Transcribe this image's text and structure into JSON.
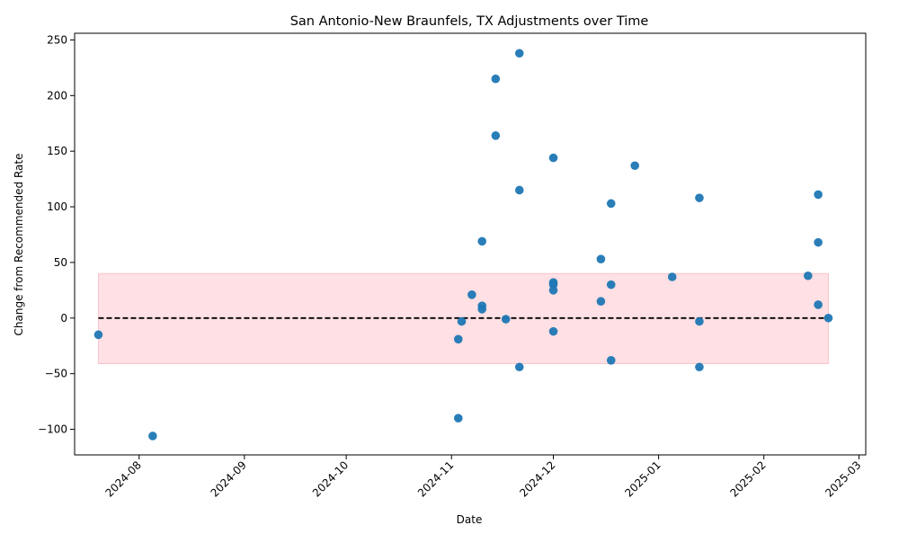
{
  "chart_data": {
    "type": "scatter",
    "title": "San Antonio-New Braunfels, TX Adjustments over Time",
    "xlabel": "Date",
    "ylabel": "Change from Recommended Rate",
    "xlim": [
      "2024-07-13",
      "2025-03-03"
    ],
    "ylim": [
      -123,
      256
    ],
    "grid": false,
    "x_ticks": [
      "2024-08",
      "2024-09",
      "2024-10",
      "2024-11",
      "2024-12",
      "2025-01",
      "2025-02",
      "2025-03"
    ],
    "y_ticks": [
      -100,
      -50,
      0,
      50,
      100,
      150,
      200,
      250
    ],
    "band": {
      "y_min": -41,
      "y_max": 40,
      "x_start": "2024-07-20",
      "x_end": "2025-02-20"
    },
    "reference_line": {
      "y": 0,
      "x_start": "2024-07-20",
      "x_end": "2025-02-20"
    },
    "points": [
      {
        "x": "2024-07-20",
        "y": -15
      },
      {
        "x": "2024-08-05",
        "y": -106
      },
      {
        "x": "2024-11-03",
        "y": -90
      },
      {
        "x": "2024-11-03",
        "y": -19
      },
      {
        "x": "2024-11-04",
        "y": -3
      },
      {
        "x": "2024-11-07",
        "y": 21
      },
      {
        "x": "2024-11-10",
        "y": 69
      },
      {
        "x": "2024-11-10",
        "y": 11
      },
      {
        "x": "2024-11-10",
        "y": 8
      },
      {
        "x": "2024-11-14",
        "y": 215
      },
      {
        "x": "2024-11-14",
        "y": 164
      },
      {
        "x": "2024-11-17",
        "y": -1
      },
      {
        "x": "2024-11-21",
        "y": 238
      },
      {
        "x": "2024-11-21",
        "y": 115
      },
      {
        "x": "2024-11-21",
        "y": -44
      },
      {
        "x": "2024-12-01",
        "y": 144
      },
      {
        "x": "2024-12-01",
        "y": 32
      },
      {
        "x": "2024-12-01",
        "y": 30
      },
      {
        "x": "2024-12-01",
        "y": 25
      },
      {
        "x": "2024-12-01",
        "y": -12
      },
      {
        "x": "2024-12-15",
        "y": 53
      },
      {
        "x": "2024-12-15",
        "y": 15
      },
      {
        "x": "2024-12-18",
        "y": 103
      },
      {
        "x": "2024-12-18",
        "y": 30
      },
      {
        "x": "2024-12-18",
        "y": -38
      },
      {
        "x": "2024-12-25",
        "y": 137
      },
      {
        "x": "2025-01-05",
        "y": 37
      },
      {
        "x": "2025-01-13",
        "y": 108
      },
      {
        "x": "2025-01-13",
        "y": -3
      },
      {
        "x": "2025-01-13",
        "y": -44
      },
      {
        "x": "2025-02-14",
        "y": 38
      },
      {
        "x": "2025-02-17",
        "y": 111
      },
      {
        "x": "2025-02-17",
        "y": 68
      },
      {
        "x": "2025-02-17",
        "y": 12
      },
      {
        "x": "2025-02-20",
        "y": 0
      }
    ],
    "colors": {
      "points": "#1f77b4",
      "band_fill": "#ffe0e4",
      "band_edge": "#f7c6cc",
      "reference_line": "#000000"
    }
  }
}
